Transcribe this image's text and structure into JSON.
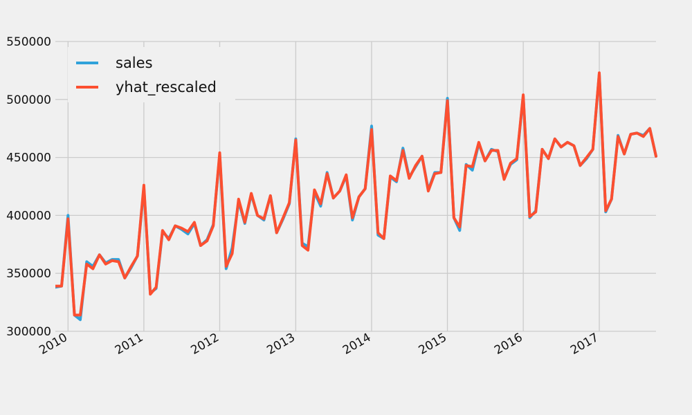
{
  "chart_data": {
    "type": "line",
    "title": "",
    "xlabel": "",
    "ylabel": "",
    "grid": true,
    "legend_position": "upper-left",
    "ylim": [
      300000,
      550000
    ],
    "xlim": [
      "2009-11-01",
      "2017-10-01"
    ],
    "yticks": [
      300000,
      350000,
      400000,
      450000,
      500000,
      550000
    ],
    "ytick_labels": [
      "300000",
      "350000",
      "400000",
      "450000",
      "500000",
      "550000"
    ],
    "xticks": [
      "2010-01-01",
      "2011-01-01",
      "2012-01-01",
      "2013-01-01",
      "2014-01-01",
      "2015-01-01",
      "2016-01-01",
      "2017-01-01"
    ],
    "xtick_labels": [
      "2010",
      "2011",
      "2012",
      "2013",
      "2014",
      "2015",
      "2016",
      "2017"
    ],
    "x": [
      "2009-11",
      "2009-12",
      "2010-01",
      "2010-02",
      "2010-03",
      "2010-04",
      "2010-05",
      "2010-06",
      "2010-07",
      "2010-08",
      "2010-09",
      "2010-10",
      "2010-11",
      "2010-12",
      "2011-01",
      "2011-02",
      "2011-03",
      "2011-04",
      "2011-05",
      "2011-06",
      "2011-07",
      "2011-08",
      "2011-09",
      "2011-10",
      "2011-11",
      "2011-12",
      "2012-01",
      "2012-02",
      "2012-03",
      "2012-04",
      "2012-05",
      "2012-06",
      "2012-07",
      "2012-08",
      "2012-09",
      "2012-10",
      "2012-11",
      "2012-12",
      "2013-01",
      "2013-02",
      "2013-03",
      "2013-04",
      "2013-05",
      "2013-06",
      "2013-07",
      "2013-08",
      "2013-09",
      "2013-10",
      "2013-11",
      "2013-12",
      "2014-01",
      "2014-02",
      "2014-03",
      "2014-04",
      "2014-05",
      "2014-06",
      "2014-07",
      "2014-08",
      "2014-09",
      "2014-10",
      "2014-11",
      "2014-12",
      "2015-01",
      "2015-02",
      "2015-03",
      "2015-04",
      "2015-05",
      "2015-06",
      "2015-07",
      "2015-08",
      "2015-09",
      "2015-10",
      "2015-11",
      "2015-12",
      "2016-01",
      "2016-02",
      "2016-03",
      "2016-04",
      "2016-05",
      "2016-06",
      "2016-07",
      "2016-08",
      "2016-09",
      "2016-10",
      "2016-11",
      "2016-12",
      "2017-01",
      "2017-02",
      "2017-03",
      "2017-04",
      "2017-05",
      "2017-06",
      "2017-07",
      "2017-08",
      "2017-09",
      "2017-10"
    ],
    "series": [
      {
        "name": "sales",
        "color": "#30a2da",
        "values": [
          338000,
          339000,
          400000,
          314000,
          310000,
          360000,
          356000,
          366000,
          359000,
          362000,
          362000,
          346000,
          355000,
          365000,
          424000,
          333000,
          337000,
          386000,
          380000,
          391000,
          388000,
          384000,
          393000,
          374000,
          379000,
          392000,
          452000,
          354000,
          372000,
          412000,
          393000,
          418000,
          400000,
          396000,
          417000,
          385000,
          397000,
          410000,
          466000,
          376000,
          373000,
          420000,
          408000,
          437000,
          415000,
          421000,
          434000,
          396000,
          416000,
          423000,
          477000,
          383000,
          380000,
          433000,
          429000,
          458000,
          433000,
          442000,
          451000,
          422000,
          437000,
          437000,
          501000,
          398000,
          387000,
          444000,
          439000,
          462000,
          447000,
          457000,
          455000,
          432000,
          444000,
          448000,
          503000,
          398000,
          404000,
          457000,
          449000,
          466000,
          459000,
          463000,
          460000,
          443000,
          449000,
          457000,
          522000,
          403000,
          414000,
          469000,
          453000,
          470000,
          471000,
          469000,
          475000,
          451000
        ]
      },
      {
        "name": "yhat_rescaled",
        "color": "#fc4f30",
        "values": [
          339000,
          339000,
          397000,
          314000,
          314000,
          358000,
          354000,
          366000,
          358000,
          361000,
          360000,
          346000,
          356000,
          365000,
          426000,
          332000,
          338000,
          387000,
          379000,
          391000,
          389000,
          386000,
          394000,
          374000,
          378000,
          391000,
          454000,
          356000,
          367000,
          414000,
          394000,
          419000,
          400000,
          397000,
          417000,
          385000,
          398000,
          411000,
          465000,
          374000,
          370000,
          422000,
          410000,
          436000,
          415000,
          421000,
          435000,
          398000,
          416000,
          423000,
          474000,
          385000,
          380000,
          434000,
          430000,
          456000,
          432000,
          443000,
          451000,
          421000,
          436000,
          437000,
          499000,
          398000,
          390000,
          443000,
          442000,
          463000,
          447000,
          456000,
          456000,
          431000,
          445000,
          449000,
          504000,
          399000,
          403000,
          457000,
          449000,
          466000,
          459000,
          463000,
          460000,
          443000,
          450000,
          457000,
          523000,
          404000,
          414000,
          468000,
          453000,
          470000,
          471000,
          468000,
          475000,
          451000
        ]
      }
    ]
  }
}
